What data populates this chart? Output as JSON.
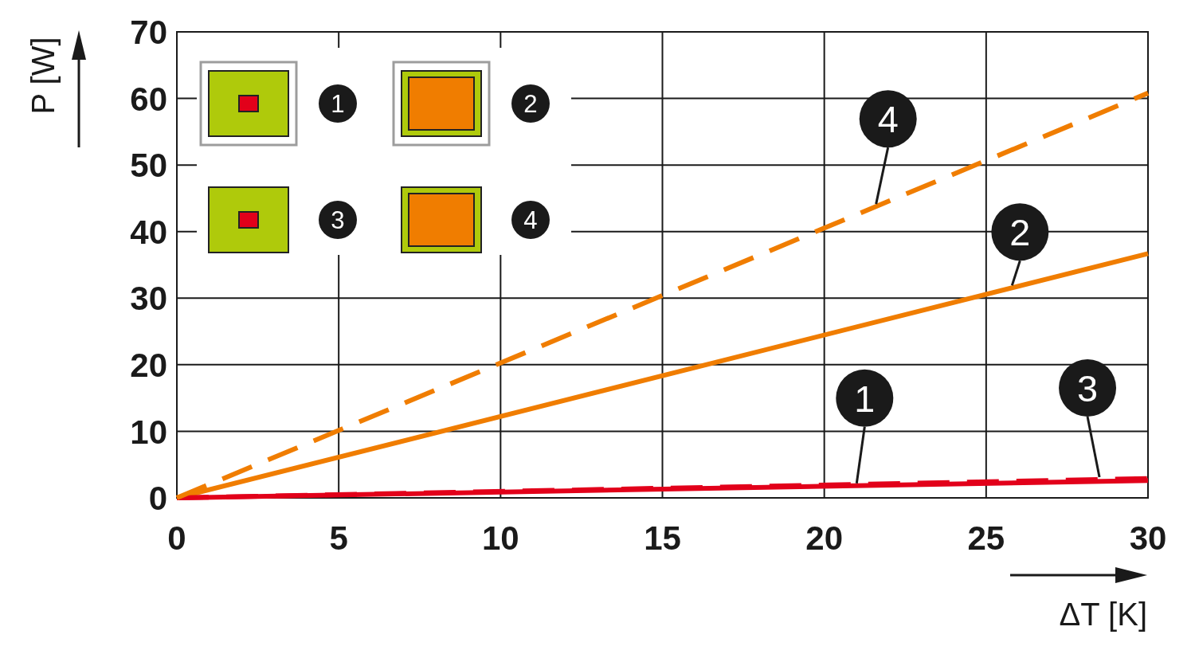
{
  "chart_data": {
    "type": "line",
    "xlabel": "ΔT [K]",
    "ylabel": "P [W]",
    "x": [
      0,
      30
    ],
    "series": [
      {
        "name": "1",
        "color": "#e2001a",
        "values": [
          0,
          2.6
        ],
        "line_style": "solid"
      },
      {
        "name": "2",
        "color": "#f07d00",
        "values": [
          0,
          36.7
        ],
        "line_style": "solid"
      },
      {
        "name": "3",
        "color": "#e2001a",
        "values": [
          0,
          2.9
        ],
        "line_style": "dashed"
      },
      {
        "name": "4",
        "color": "#f07d00",
        "values": [
          0,
          60.8
        ],
        "line_style": "dashed"
      }
    ],
    "xlim": [
      0,
      30
    ],
    "ylim": [
      0,
      70
    ],
    "xticks": [
      0,
      5,
      10,
      15,
      20,
      25,
      30
    ],
    "yticks": [
      0,
      10,
      20,
      30,
      40,
      50,
      60,
      70
    ],
    "grid": true,
    "legend": "top left"
  }
}
